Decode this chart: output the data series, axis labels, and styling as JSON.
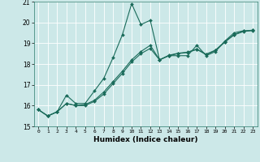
{
  "title": "",
  "xlabel": "Humidex (Indice chaleur)",
  "ylabel": "",
  "background_color": "#cce8e8",
  "line_color": "#1a6b5a",
  "grid_color": "#ffffff",
  "xlim": [
    -0.5,
    23.5
  ],
  "ylim": [
    15,
    21
  ],
  "yticks": [
    15,
    16,
    17,
    18,
    19,
    20,
    21
  ],
  "xtick_labels": [
    "0",
    "1",
    "2",
    "3",
    "4",
    "5",
    "6",
    "7",
    "8",
    "9",
    "10",
    "11",
    "12",
    "13",
    "14",
    "15",
    "16",
    "17",
    "18",
    "19",
    "20",
    "21",
    "22",
    "23"
  ],
  "xticks": [
    0,
    1,
    2,
    3,
    4,
    5,
    6,
    7,
    8,
    9,
    10,
    11,
    12,
    13,
    14,
    15,
    16,
    17,
    18,
    19,
    20,
    21,
    22,
    23
  ],
  "x": [
    0,
    1,
    2,
    3,
    4,
    5,
    6,
    7,
    8,
    9,
    10,
    11,
    12,
    13,
    14,
    15,
    16,
    17,
    18,
    19,
    20,
    21,
    22,
    23
  ],
  "series1": [
    15.8,
    15.5,
    15.7,
    16.5,
    16.1,
    16.1,
    16.7,
    17.3,
    18.3,
    19.4,
    20.9,
    19.9,
    20.1,
    18.2,
    18.4,
    18.4,
    18.4,
    18.9,
    18.4,
    18.6,
    19.1,
    19.5,
    19.6,
    19.6
  ],
  "series2": [
    15.8,
    15.5,
    15.7,
    16.1,
    16.0,
    16.0,
    16.2,
    16.55,
    17.05,
    17.55,
    18.1,
    18.5,
    18.75,
    18.2,
    18.4,
    18.5,
    18.55,
    18.7,
    18.45,
    18.65,
    19.05,
    19.4,
    19.56,
    19.62
  ],
  "series3": [
    15.8,
    15.5,
    15.7,
    16.1,
    16.0,
    16.05,
    16.25,
    16.65,
    17.15,
    17.65,
    18.2,
    18.6,
    18.9,
    18.2,
    18.42,
    18.52,
    18.57,
    18.72,
    18.47,
    18.67,
    19.07,
    19.42,
    19.58,
    19.63
  ]
}
